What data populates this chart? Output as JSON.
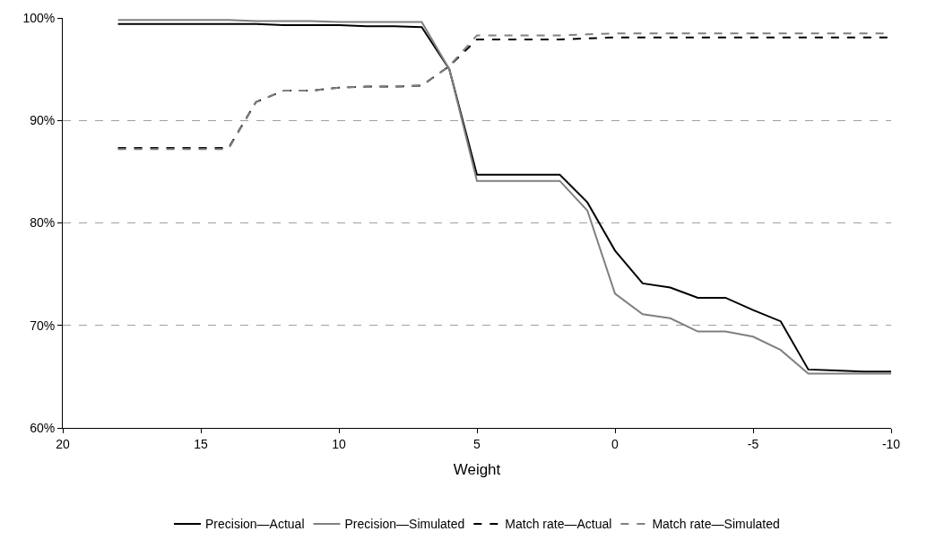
{
  "chart_data": {
    "type": "line",
    "xlabel": "Weight",
    "x": [
      18,
      17,
      16,
      15,
      14,
      13,
      12,
      11,
      10,
      9,
      8,
      7,
      6,
      5,
      4,
      3,
      2,
      1,
      0,
      -1,
      -2,
      -3,
      -4,
      -5,
      -6,
      -7,
      -8,
      -9,
      -10
    ],
    "series": [
      {
        "name": "Precision—Actual",
        "color": "#000000",
        "line_style": "solid",
        "values": [
          99.4,
          99.4,
          99.4,
          99.4,
          99.4,
          99.4,
          99.3,
          99.3,
          99.3,
          99.2,
          99.2,
          99.1,
          95.0,
          84.7,
          84.7,
          84.7,
          84.7,
          82.0,
          77.3,
          74.1,
          73.7,
          72.7,
          72.7,
          71.5,
          70.4,
          65.7,
          65.6,
          65.5,
          65.5
        ]
      },
      {
        "name": "Precision—Simulated",
        "color": "#808080",
        "line_style": "solid",
        "values": [
          99.8,
          99.8,
          99.8,
          99.8,
          99.8,
          99.7,
          99.7,
          99.7,
          99.6,
          99.6,
          99.6,
          99.6,
          95.0,
          84.1,
          84.1,
          84.1,
          84.1,
          81.2,
          73.1,
          71.1,
          70.7,
          69.4,
          69.4,
          68.9,
          67.6,
          65.3,
          65.3,
          65.3,
          65.3
        ]
      },
      {
        "name": "Match rate—Actual",
        "color": "#000000",
        "line_style": "dashed",
        "values": [
          87.3,
          87.3,
          87.3,
          87.3,
          87.3,
          91.8,
          92.9,
          92.9,
          93.2,
          93.3,
          93.3,
          93.4,
          95.3,
          97.9,
          97.9,
          97.9,
          97.9,
          98.0,
          98.1,
          98.1,
          98.1,
          98.1,
          98.1,
          98.1,
          98.1,
          98.1,
          98.1,
          98.1,
          98.1
        ]
      },
      {
        "name": "Match rate—Simulated",
        "color": "#808080",
        "line_style": "dashed",
        "values": [
          87.2,
          87.2,
          87.2,
          87.2,
          87.2,
          91.8,
          92.9,
          92.9,
          93.2,
          93.3,
          93.3,
          93.4,
          95.3,
          98.3,
          98.3,
          98.3,
          98.3,
          98.4,
          98.5,
          98.5,
          98.5,
          98.5,
          98.5,
          98.5,
          98.5,
          98.5,
          98.5,
          98.5,
          98.5
        ]
      }
    ],
    "xlim": [
      20,
      -10
    ],
    "xticks": [
      20,
      15,
      10,
      5,
      0,
      -5,
      -10
    ],
    "ylim": [
      60,
      100
    ],
    "yticks": [
      {
        "value": 60,
        "label": "60%"
      },
      {
        "value": 70,
        "label": "70%"
      },
      {
        "value": 80,
        "label": "80%"
      },
      {
        "value": 90,
        "label": "90%"
      },
      {
        "value": 100,
        "label": "100%"
      }
    ],
    "grid": "y",
    "legend": "bottom",
    "marker": "none"
  }
}
